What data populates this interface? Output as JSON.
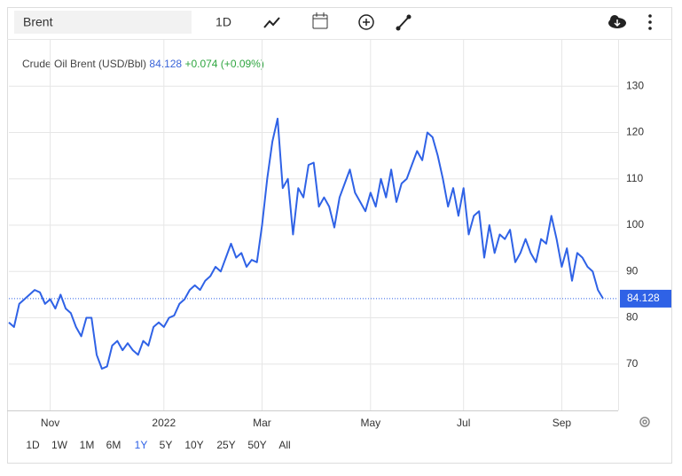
{
  "search": "Brent",
  "toolbar_interval": "1D",
  "range_buttons": [
    "1D",
    "1W",
    "1M",
    "6M",
    "1Y",
    "5Y",
    "10Y",
    "25Y",
    "50Y",
    "All"
  ],
  "selected_range": "1Y",
  "chart_data": {
    "type": "line",
    "title": "Crude Oil Brent (USD/Bbl)",
    "change": "+0.074 (+0.09%)",
    "color": "#2f62e6",
    "values": [
      79,
      78,
      83,
      84,
      85,
      86,
      85.5,
      83,
      84,
      82,
      85,
      82,
      81,
      78,
      76,
      80,
      80,
      72,
      69,
      69.5,
      74,
      75,
      73,
      74.5,
      73,
      72,
      75,
      74,
      78,
      79,
      78,
      80,
      80.5,
      83,
      84,
      86,
      87,
      86,
      88,
      89,
      91,
      90,
      93,
      96,
      93,
      94,
      91,
      92.5,
      92,
      100,
      110,
      118,
      123,
      108,
      110,
      98,
      108,
      106,
      113,
      113.5,
      104,
      106,
      104,
      99.5,
      106,
      109,
      112,
      107,
      105,
      103,
      107,
      104,
      110,
      106,
      112,
      105,
      109,
      110,
      113,
      116,
      114,
      120,
      119,
      115,
      110,
      104,
      108,
      102,
      108,
      98,
      102,
      103,
      93,
      100,
      94,
      98,
      97,
      99,
      92,
      94,
      97,
      94,
      92,
      97,
      96,
      102,
      97,
      91,
      95,
      88,
      94,
      93,
      91,
      90,
      86,
      84.128
    ],
    "xticks": [
      {
        "value": 8,
        "label": "Nov"
      },
      {
        "value": 30,
        "label": "2022"
      },
      {
        "value": 49,
        "label": "Mar"
      },
      {
        "value": 70,
        "label": "May"
      },
      {
        "value": 88,
        "label": "Jul"
      },
      {
        "value": 107,
        "label": "Sep"
      }
    ],
    "ylim": [
      60,
      140
    ],
    "yticks": [
      70,
      80,
      90,
      100,
      110,
      120,
      130
    ],
    "grid": true
  }
}
